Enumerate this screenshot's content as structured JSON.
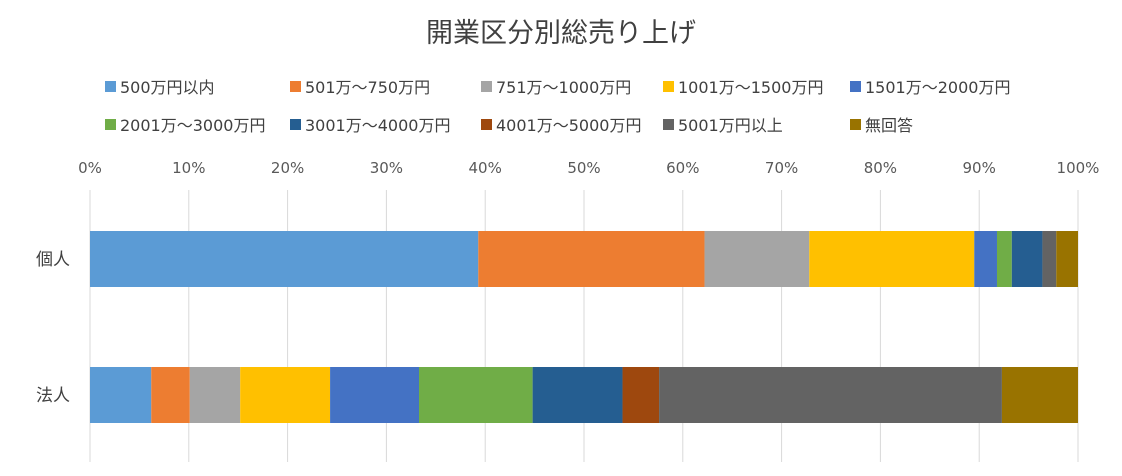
{
  "chart_data": {
    "type": "bar",
    "orientation": "horizontal",
    "stacked": "percent",
    "title": "開業区分別総売り上げ",
    "xlabel": "",
    "ylabel": "",
    "xlim": [
      0,
      100
    ],
    "x_ticks": [
      "0%",
      "10%",
      "20%",
      "30%",
      "40%",
      "50%",
      "60%",
      "70%",
      "80%",
      "90%",
      "100%"
    ],
    "grid": true,
    "legend_position": "top",
    "categories": [
      "個人",
      "法人"
    ],
    "series": [
      {
        "name": "500万円以内",
        "color": "#5B9BD5",
        "values": [
          39.3,
          6.2
        ]
      },
      {
        "name": "501万～750万円",
        "color": "#ED7D31",
        "values": [
          22.9,
          3.9
        ]
      },
      {
        "name": "751万～1000万円",
        "color": "#A5A5A5",
        "values": [
          10.6,
          5.1
        ]
      },
      {
        "name": "1001万～1500万円",
        "color": "#FFC000",
        "values": [
          16.7,
          9.1
        ]
      },
      {
        "name": "1501万～2000万円",
        "color": "#4472C4",
        "values": [
          2.3,
          9.0
        ]
      },
      {
        "name": "2001万～3000万円",
        "color": "#70AD47",
        "values": [
          1.5,
          11.5
        ]
      },
      {
        "name": "3001万～4000万円",
        "color": "#255E91",
        "values": [
          3.1,
          9.1
        ]
      },
      {
        "name": "4001万～5000万円",
        "color": "#9E480E",
        "values": [
          0.0,
          3.7
        ]
      },
      {
        "name": "5001万円以上",
        "color": "#636363",
        "values": [
          1.4,
          34.7
        ]
      },
      {
        "name": "無回答",
        "color": "#997300",
        "values": [
          2.2,
          7.7
        ]
      }
    ]
  }
}
